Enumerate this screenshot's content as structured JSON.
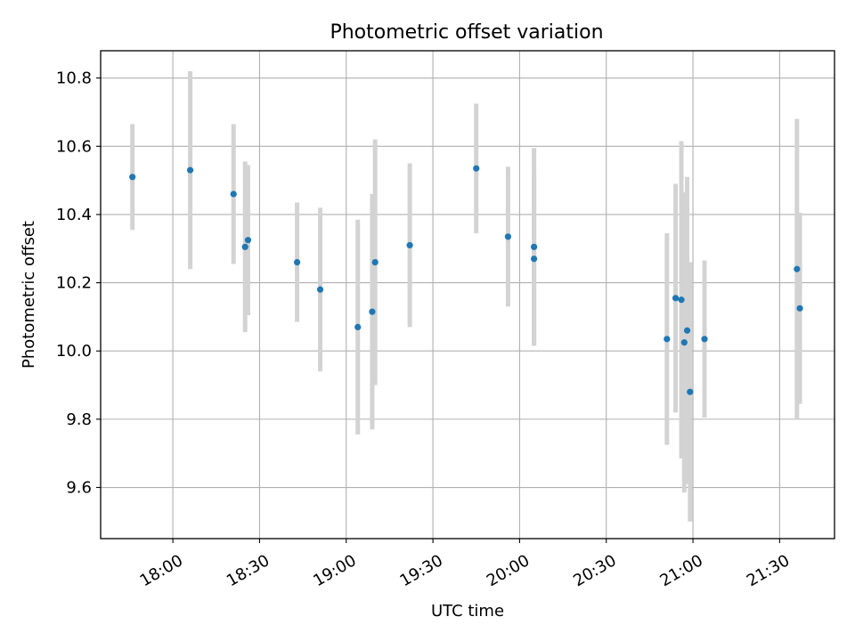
{
  "chart_data": {
    "type": "scatter",
    "title": "Photometric offset variation",
    "xlabel": "UTC time",
    "ylabel": "Photometric offset",
    "xlim": [
      "17:35",
      "21:49"
    ],
    "ylim": [
      9.45,
      10.88
    ],
    "x_ticks": [
      "18:00",
      "18:30",
      "19:00",
      "19:30",
      "20:00",
      "20:30",
      "21:00",
      "21:30"
    ],
    "y_ticks": [
      "9.6",
      "9.8",
      "10.0",
      "10.2",
      "10.4",
      "10.6",
      "10.8"
    ],
    "grid": true,
    "errorbar_color": "#d3d3d3",
    "marker_color": "#1f77b4",
    "points": [
      {
        "time": "17:46",
        "y": 10.51,
        "yerr": 0.155
      },
      {
        "time": "18:06",
        "y": 10.53,
        "yerr": 0.29
      },
      {
        "time": "18:21",
        "y": 10.46,
        "yerr": 0.205
      },
      {
        "time": "18:25",
        "y": 10.305,
        "yerr": 0.25
      },
      {
        "time": "18:26",
        "y": 10.325,
        "yerr": 0.22
      },
      {
        "time": "18:43",
        "y": 10.26,
        "yerr": 0.175
      },
      {
        "time": "18:51",
        "y": 10.18,
        "yerr": 0.24
      },
      {
        "time": "19:04",
        "y": 10.07,
        "yerr": 0.315
      },
      {
        "time": "19:09",
        "y": 10.115,
        "yerr": 0.345
      },
      {
        "time": "19:10",
        "y": 10.26,
        "yerr": 0.36
      },
      {
        "time": "19:22",
        "y": 10.31,
        "yerr": 0.24
      },
      {
        "time": "19:45",
        "y": 10.535,
        "yerr": 0.19
      },
      {
        "time": "19:56",
        "y": 10.335,
        "yerr": 0.205
      },
      {
        "time": "20:05",
        "y": 10.305,
        "yerr": 0.29
      },
      {
        "time": "20:05",
        "y": 10.27,
        "yerr": 0.255
      },
      {
        "time": "20:51",
        "y": 10.035,
        "yerr": 0.31
      },
      {
        "time": "20:54",
        "y": 10.155,
        "yerr": 0.335
      },
      {
        "time": "20:56",
        "y": 10.15,
        "yerr": 0.465
      },
      {
        "time": "20:57",
        "y": 10.025,
        "yerr": 0.44
      },
      {
        "time": "20:58",
        "y": 10.06,
        "yerr": 0.45
      },
      {
        "time": "20:59",
        "y": 9.88,
        "yerr": 0.38
      },
      {
        "time": "21:04",
        "y": 10.035,
        "yerr": 0.23
      },
      {
        "time": "21:36",
        "y": 10.24,
        "yerr": 0.44
      },
      {
        "time": "21:37",
        "y": 10.125,
        "yerr": 0.28
      }
    ]
  }
}
